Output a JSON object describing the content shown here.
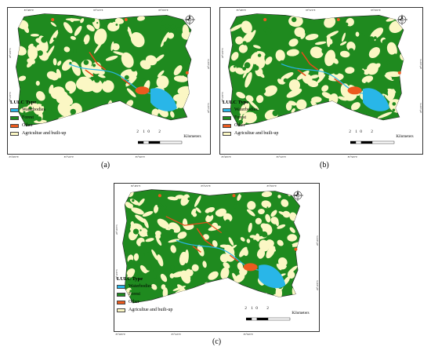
{
  "colors": {
    "waterbodies": "#29b6e8",
    "forest": "#1f8a1f",
    "other": "#ec5a1e",
    "agriculture": "#fbf7c4",
    "road": "#e74c1a"
  },
  "legend": {
    "title": "LULC Type",
    "items": [
      {
        "label": "Waterbodies",
        "color": "#29b6e8"
      },
      {
        "label": "Forest",
        "color": "#1f8a1f"
      },
      {
        "label": "Other",
        "color": "#ec5a1e"
      },
      {
        "label": "Agricultue and built-up",
        "color": "#fbf7c4"
      }
    ]
  },
  "scale_bar": {
    "ticks": [
      "2",
      "1",
      "0",
      "2"
    ],
    "unit": "Kilometers"
  },
  "compass": {
    "n": "N",
    "s": "S",
    "e": "E",
    "w": "W"
  },
  "coords": {
    "top": [
      "85°48'0\"E",
      "85°52'0\"E",
      "85°56'0\"E"
    ],
    "bottom": [
      "85°48'0\"E",
      "85°52'0\"E",
      "85°56'0\"E"
    ],
    "left": [
      "28°16'0\"N",
      "28°12'0\"N"
    ],
    "right": [
      "28°16'0\"N",
      "28°12'0\"N"
    ]
  },
  "captions": [
    "(a)",
    "(b)",
    "(c)"
  ]
}
